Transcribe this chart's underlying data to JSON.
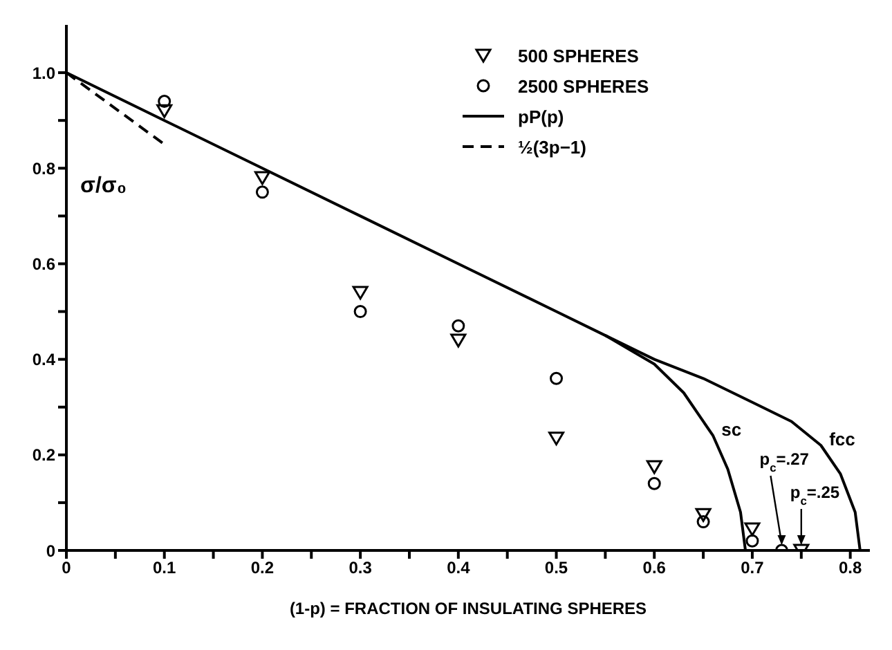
{
  "chart_data": {
    "type": "scatter",
    "xlabel": "(1-p) = FRACTION OF INSULATING SPHERES",
    "ylabel": "σ/σ₀",
    "xlim": [
      0,
      0.82
    ],
    "ylim": [
      0,
      1.1
    ],
    "xticks": [
      0,
      {
        "value": 0.05,
        "label": null
      },
      {
        "value": 0.1,
        "label": "0.1"
      },
      {
        "value": 0.15,
        "label": null
      },
      {
        "value": 0.2,
        "label": "0.2"
      },
      {
        "value": 0.25,
        "label": null
      },
      {
        "value": 0.3,
        "label": "0.3"
      },
      {
        "value": 0.35,
        "label": null
      },
      {
        "value": 0.4,
        "label": "0.4"
      },
      {
        "value": 0.45,
        "label": null
      },
      {
        "value": 0.5,
        "label": "0.5"
      },
      {
        "value": 0.55,
        "label": null
      },
      {
        "value": 0.6,
        "label": "0.6"
      },
      {
        "value": 0.65,
        "label": null
      },
      {
        "value": 0.7,
        "label": "0.7"
      },
      {
        "value": 0.75,
        "label": null
      },
      {
        "value": 0.8,
        "label": "0.8"
      }
    ],
    "yticks": [
      0,
      {
        "value": 0.1,
        "label": null
      },
      {
        "value": 0.2,
        "label": "0.2"
      },
      {
        "value": 0.3,
        "label": null
      },
      {
        "value": 0.4,
        "label": "0.4"
      },
      {
        "value": 0.5,
        "label": null
      },
      {
        "value": 0.6,
        "label": "0.6"
      },
      {
        "value": 0.7,
        "label": null
      },
      {
        "value": 0.8,
        "label": "0.8"
      },
      {
        "value": 0.9,
        "label": null
      },
      {
        "value": 1.0,
        "label": "1.0"
      }
    ],
    "legend": "top right",
    "series": [
      {
        "name": "500 SPHERES",
        "marker": "triangle",
        "color": "#000000",
        "x": [
          0.1,
          0.2,
          0.3,
          0.4,
          0.5,
          0.6,
          0.65,
          0.7,
          0.75
        ],
        "values": [
          0.92,
          0.78,
          0.54,
          0.44,
          0.235,
          0.175,
          0.075,
          0.045,
          0
        ]
      },
      {
        "name": "2500 SPHERES",
        "marker": "circle",
        "color": "#000000",
        "x": [
          0.1,
          0.2,
          0.3,
          0.4,
          0.5,
          0.6,
          0.65,
          0.7,
          0.73
        ],
        "values": [
          0.94,
          0.75,
          0.5,
          0.47,
          0.36,
          0.14,
          0.06,
          0.02,
          0
        ]
      },
      {
        "name": "pP(p)",
        "type": "line",
        "marker": "none",
        "line_style": "solid",
        "color": "#000000",
        "x": [
          0,
          0.1,
          0.2,
          0.3,
          0.4,
          0.5,
          0.55,
          0.6,
          0.65,
          0.7,
          0.74,
          0.77,
          0.79,
          0.805,
          0.81
        ],
        "values": [
          1.0,
          0.9,
          0.8,
          0.7,
          0.6,
          0.5,
          0.45,
          0.4,
          0.36,
          0.31,
          0.27,
          0.22,
          0.16,
          0.08,
          0
        ]
      },
      {
        "type": "line",
        "marker": "none",
        "line_style": "solid",
        "color": "#000000",
        "x": [
          0.55,
          0.6,
          0.63,
          0.66,
          0.675,
          0.688,
          0.693
        ],
        "values": [
          0.45,
          0.39,
          0.33,
          0.24,
          0.17,
          0.08,
          0
        ]
      },
      {
        "name": "½(3p−1)",
        "type": "line",
        "marker": "none",
        "line_style": "dashed",
        "color": "#000000",
        "x": [
          0,
          0.1
        ],
        "values": [
          1.0,
          0.85
        ]
      }
    ],
    "annotations": [
      {
        "text": "sc",
        "x": 0.66,
        "y": 0.24
      },
      {
        "text": "fcc",
        "x": 0.77,
        "y": 0.22
      },
      {
        "text": "p$_{c}$=.27",
        "x": 0.73,
        "y": 0
      },
      {
        "text": "p$_{c}$=.25",
        "x": 0.75,
        "y": 0
      }
    ]
  }
}
